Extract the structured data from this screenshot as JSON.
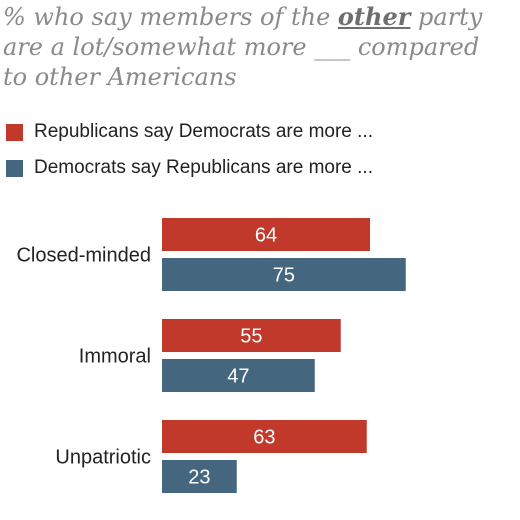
{
  "title": {
    "before": "% who say members of the ",
    "emphasis": "other",
    "after": " party\nare a lot/somewhat more ___ compared\nto other Americans"
  },
  "legend": [
    {
      "label": "Republicans say Democrats are more ...",
      "color": "#c0392b"
    },
    {
      "label": "Democrats say Republicans are more ...",
      "color": "#44667f"
    }
  ],
  "chart_data": {
    "type": "bar",
    "orientation": "horizontal",
    "categories": [
      "Closed-minded",
      "Immoral",
      "Unpatriotic"
    ],
    "series": [
      {
        "name": "Republicans say Democrats are more ...",
        "color": "#c0392b",
        "values": [
          64,
          55,
          63
        ]
      },
      {
        "name": "Democrats say Republicans are more ...",
        "color": "#44667f",
        "values": [
          75,
          47,
          23
        ]
      }
    ],
    "xlim": [
      0,
      100
    ],
    "grid": false,
    "legend_position": "top-left"
  }
}
